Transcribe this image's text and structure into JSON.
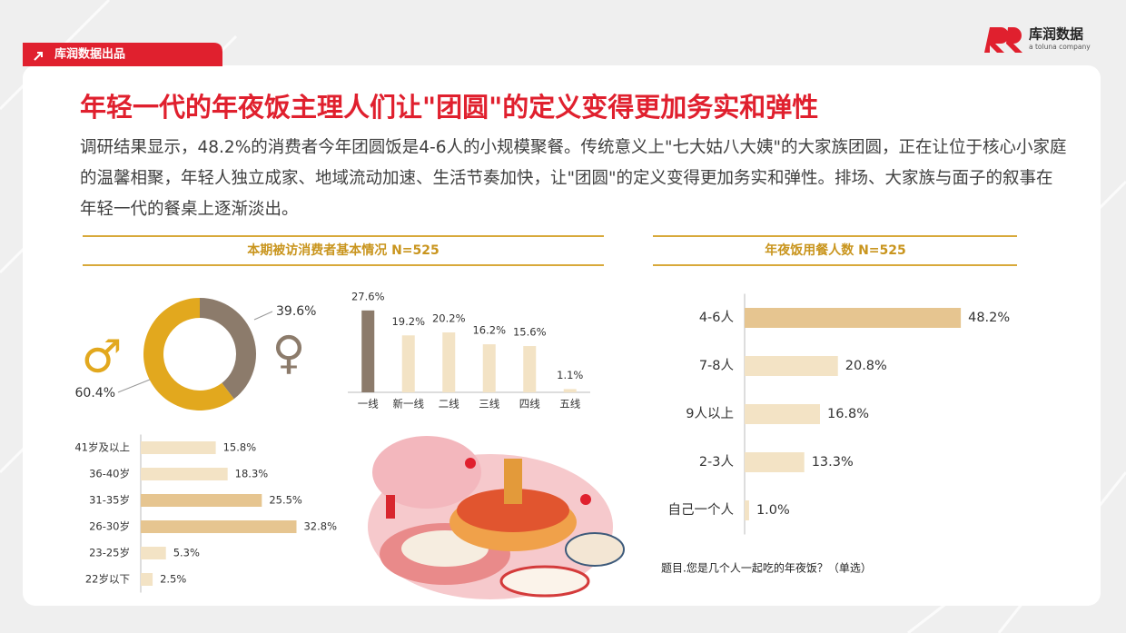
{
  "header": {
    "badge": "库润数据出品",
    "logo": "库润数据",
    "logo_sub": "a toluna company"
  },
  "title": "年轻一代的年夜饭主理人们让\"团圆\"的定义变得更加务实和弹性",
  "body": "调研结果显示，48.2%的消费者今年团圆饭是4-6人的小规模聚餐。传统意义上\"七大姑八大姨\"的大家族团圆，正在让位于核心小家庭的温馨相聚，年轻人独立成家、地域流动加速、生活节奏加快，让\"团圆\"的定义变得更加务实和弹性。排场、大家族与面子的叙事在年轻一代的餐桌上逐渐淡出。",
  "profile_title": "本期被访消费者基本情况  N=525",
  "chart_data": [
    {
      "type": "donut",
      "categories": [
        "♂",
        "♀"
      ],
      "values": [
        60.4,
        39.6
      ],
      "value_labels": [
        "60.4%",
        "39.6%"
      ],
      "colors": [
        "#e2a81e",
        "#8c7b6b"
      ]
    },
    {
      "type": "bar",
      "categories": [
        "一线",
        "新一线",
        "二线",
        "三线",
        "四线",
        "五线"
      ],
      "values": [
        27.6,
        19.2,
        20.2,
        16.2,
        15.6,
        1.1
      ],
      "value_labels": [
        "27.6%",
        "19.2%",
        "20.2%",
        "16.2%",
        "15.6%",
        "1.1%"
      ],
      "colors": [
        "#8c7b6b",
        "#f3e3c5",
        "#f3e3c5",
        "#f3e3c5",
        "#f3e3c5",
        "#f3e3c5"
      ],
      "ylim": [
        0,
        30
      ]
    },
    {
      "type": "hbar",
      "categories": [
        "41岁及以上",
        "36-40岁",
        "31-35岁",
        "26-30岁",
        "23-25岁",
        "22岁以下"
      ],
      "values": [
        15.8,
        18.3,
        25.5,
        32.8,
        5.3,
        2.5
      ],
      "value_labels": [
        "15.8%",
        "18.3%",
        "25.5%",
        "32.8%",
        "5.3%",
        "2.5%"
      ],
      "colors": [
        "#f3e3c5",
        "#f3e3c5",
        "#e6c590",
        "#e6c590",
        "#f3e3c5",
        "#f3e3c5"
      ],
      "xlim": [
        0,
        35
      ]
    },
    {
      "type": "hbar",
      "title": "年夜饭用餐人数  N=525",
      "categories": [
        "4-6人",
        "7-8人",
        "9人以上",
        "2-3人",
        "自己一个人"
      ],
      "values": [
        48.2,
        20.8,
        16.8,
        13.3,
        1.0
      ],
      "value_labels": [
        "48.2%",
        "20.8%",
        "16.8%",
        "13.3%",
        "1.0%"
      ],
      "colors": [
        "#e6c590",
        "#f3e3c5",
        "#f3e3c5",
        "#f3e3c5",
        "#f3e3c5"
      ],
      "xlim": [
        0,
        50
      ],
      "note": "题目.您是几个人一起吃的年夜饭？（单选）"
    }
  ]
}
